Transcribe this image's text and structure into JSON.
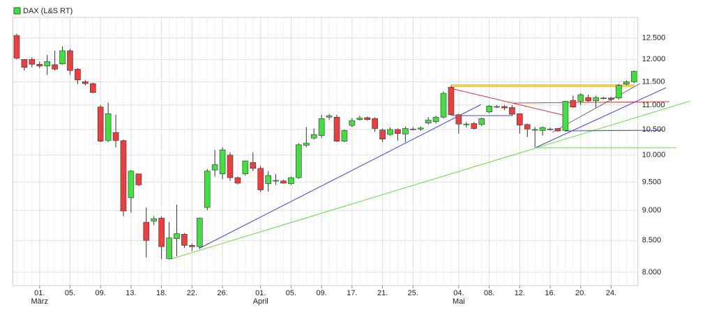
{
  "chart_data": {
    "type": "candlestick",
    "series": [
      {
        "name": "DAX (L&S RT)",
        "color": "#44dd44",
        "down_color": "#e84040",
        "open": [
          12560,
          12000,
          12000,
          11890,
          11850,
          11880,
          11900,
          12200,
          11780,
          11500,
          11460,
          10960,
          10280,
          10440,
          10280,
          9220,
          9650,
          8800,
          8820,
          8870,
          8210,
          8530,
          8600,
          8420,
          8400,
          9050,
          9720,
          9650,
          10000,
          9580,
          9650,
          9860,
          9750,
          9470,
          9520,
          9520,
          9470,
          9580,
          10190,
          10330,
          10380,
          10750,
          10750,
          10270,
          10580,
          10700,
          10740,
          10720,
          10490,
          10400,
          10500,
          10410,
          10500,
          10510,
          10630,
          10660,
          10750,
          11380,
          10800,
          10600,
          10620,
          10600,
          10860,
          10960,
          10970,
          10950,
          10820,
          10600,
          10490,
          10480,
          10500,
          10520,
          10480,
          11100,
          11080,
          11160,
          11090,
          11140,
          11150,
          11150,
          11450,
          11500
        ],
        "high": [
          12600,
          12000,
          12050,
          11950,
          12100,
          12200,
          12300,
          12250,
          11800,
          11540,
          11480,
          11000,
          11050,
          10800,
          10300,
          9720,
          9650,
          9050,
          8900,
          8900,
          8800,
          9100,
          8620,
          8450,
          8880,
          9740,
          10100,
          10150,
          10050,
          9600,
          9900,
          10050,
          9800,
          9700,
          9650,
          9540,
          9600,
          10230,
          10550,
          10520,
          10800,
          10820,
          10800,
          10500,
          10730,
          10780,
          10760,
          10750,
          10520,
          10540,
          10520,
          10560,
          10550,
          10560,
          10750,
          10780,
          11290,
          11420,
          10820,
          10650,
          10650,
          10740,
          11000,
          11000,
          11000,
          11000,
          10830,
          10620,
          10550,
          10560,
          10540,
          10530,
          11090,
          11200,
          11250,
          11220,
          11200,
          11170,
          11170,
          11450,
          11530,
          11750
        ],
        "low": [
          12000,
          11750,
          11820,
          11800,
          11650,
          11750,
          11880,
          11650,
          11450,
          11420,
          11250,
          10250,
          10250,
          10150,
          8900,
          8960,
          9430,
          8230,
          8750,
          8200,
          8200,
          8250,
          8380,
          8330,
          8380,
          9000,
          9600,
          9550,
          9520,
          9460,
          9620,
          9700,
          9320,
          9330,
          9450,
          9470,
          9450,
          9560,
          10150,
          10300,
          10330,
          10700,
          10250,
          10250,
          10550,
          10680,
          10680,
          10450,
          10250,
          10380,
          10280,
          10250,
          10480,
          10470,
          10600,
          10620,
          10720,
          10780,
          10420,
          10540,
          10500,
          10570,
          10830,
          10940,
          10900,
          10780,
          10420,
          10350,
          10150,
          10380,
          10480,
          10460,
          10460,
          10940,
          11000,
          11060,
          10950,
          11120,
          11080,
          11120,
          11420,
          11470
        ],
        "close": [
          12030,
          11820,
          11890,
          11850,
          11950,
          11780,
          12200,
          11750,
          11540,
          11460,
          11270,
          10270,
          10820,
          10280,
          8990,
          9700,
          9450,
          8500,
          8860,
          8400,
          8540,
          8610,
          8420,
          8400,
          8870,
          9700,
          9820,
          10100,
          9580,
          9480,
          9890,
          9750,
          9360,
          9620,
          9530,
          9480,
          9580,
          10200,
          10230,
          10400,
          10720,
          10780,
          10270,
          10480,
          10680,
          10730,
          10700,
          10520,
          10310,
          10500,
          10420,
          10520,
          10510,
          10530,
          10690,
          10750,
          11250,
          10800,
          10610,
          10610,
          10520,
          10720,
          10980,
          10970,
          10940,
          10810,
          10590,
          10510,
          10500,
          10540,
          10510,
          10470,
          11080,
          10960,
          11220,
          11090,
          11160,
          11150,
          11120,
          11420,
          11500,
          11730
        ]
      }
    ],
    "categories": [
      null,
      null,
      null,
      "01.",
      null,
      null,
      null,
      "05.",
      null,
      null,
      null,
      "09.",
      null,
      null,
      null,
      "13.",
      null,
      null,
      null,
      "18.",
      null,
      null,
      null,
      "22.",
      null,
      null,
      null,
      "26.",
      null,
      null,
      null,
      null,
      "01.",
      null,
      null,
      null,
      "05.",
      null,
      null,
      null,
      "09.",
      null,
      null,
      null,
      "17.",
      null,
      null,
      null,
      "21.",
      null,
      null,
      null,
      "25.",
      null,
      null,
      null,
      null,
      null,
      "04.",
      null,
      null,
      null,
      "08.",
      null,
      null,
      null,
      "12.",
      null,
      null,
      null,
      "16.",
      null,
      null,
      null,
      "20.",
      null,
      null,
      null,
      "24.",
      null,
      null,
      null
    ],
    "month_labels": [
      null,
      null,
      null,
      "März",
      null,
      null,
      null,
      null,
      null,
      null,
      null,
      null,
      null,
      null,
      null,
      null,
      null,
      null,
      null,
      null,
      null,
      null,
      null,
      null,
      null,
      null,
      null,
      null,
      null,
      null,
      null,
      null,
      "April",
      null,
      null,
      null,
      null,
      null,
      null,
      null,
      null,
      null,
      null,
      null,
      null,
      null,
      null,
      null,
      null,
      null,
      null,
      null,
      null,
      null,
      null,
      null,
      null,
      null,
      "Mai",
      null,
      null,
      null,
      null,
      null,
      null,
      null,
      null,
      null,
      null,
      null,
      null,
      null,
      null,
      null,
      null,
      null,
      null,
      null,
      null,
      null,
      null,
      null
    ],
    "ylim": [
      7800,
      13000
    ],
    "log_scale": true,
    "grid": true,
    "yticks": [
      {
        "value": 8000,
        "label": "8.000"
      },
      {
        "value": 8500,
        "label": "8.500"
      },
      {
        "value": 9000,
        "label": "9.000"
      },
      {
        "value": 9500,
        "label": "9.500"
      },
      {
        "value": 10000,
        "label": "10.000"
      },
      {
        "value": 10500,
        "label": "10.500"
      },
      {
        "value": 11000,
        "label": "11.000"
      },
      {
        "value": 11500,
        "label": "11.500"
      },
      {
        "value": 12000,
        "label": "12.000"
      },
      {
        "value": 12500,
        "label": "12.500"
      }
    ]
  }
}
